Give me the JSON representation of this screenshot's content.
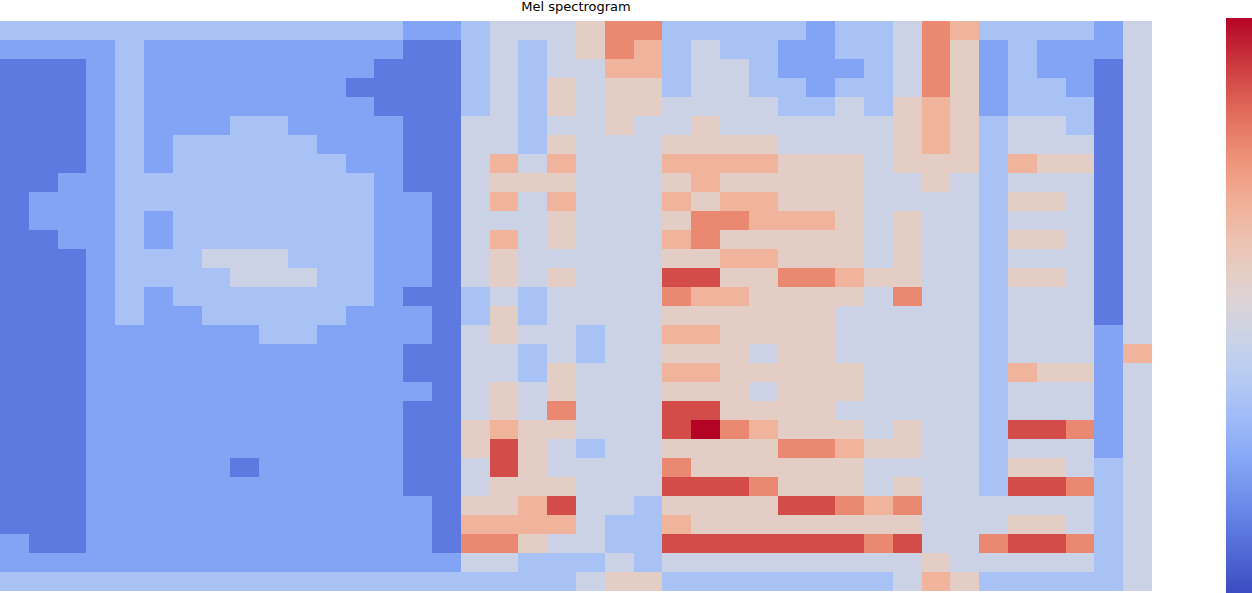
{
  "chart_data": {
    "type": "heatmap",
    "title": "Mel spectrogram",
    "color": "coolwarm",
    "tick_labels": false,
    "colorbar": {
      "range": [
        0,
        9
      ]
    },
    "values": [
      [
        3,
        2,
        1,
        1,
        1,
        1,
        1,
        1,
        1,
        1,
        1,
        1,
        1,
        1,
        1,
        1,
        1,
        1,
        1,
        1,
        1,
        1,
        1,
        1,
        1,
        1,
        1,
        2,
        2,
        3
      ],
      [
        3,
        2,
        1,
        1,
        1,
        1,
        1,
        1,
        1,
        2,
        2,
        1,
        1,
        1,
        1,
        1,
        1,
        1,
        1,
        1,
        1,
        1,
        1,
        1,
        1,
        1,
        1,
        1,
        2,
        3
      ],
      [
        3,
        2,
        1,
        1,
        1,
        1,
        1,
        1,
        2,
        2,
        2,
        2,
        1,
        1,
        1,
        1,
        1,
        1,
        1,
        1,
        1,
        1,
        1,
        1,
        1,
        1,
        1,
        1,
        2,
        3
      ],
      [
        3,
        2,
        2,
        2,
        2,
        2,
        2,
        2,
        2,
        2,
        2,
        2,
        2,
        2,
        2,
        2,
        2,
        2,
        2,
        2,
        2,
        2,
        2,
        2,
        2,
        2,
        2,
        2,
        2,
        3
      ],
      [
        3,
        3,
        3,
        3,
        3,
        3,
        3,
        3,
        3,
        3,
        3,
        3,
        3,
        3,
        3,
        3,
        2,
        2,
        2,
        2,
        2,
        2,
        2,
        2,
        2,
        2,
        2,
        2,
        2,
        3
      ],
      [
        3,
        2,
        2,
        2,
        2,
        2,
        2,
        2,
        3,
        3,
        2,
        2,
        3,
        3,
        2,
        2,
        2,
        2,
        2,
        2,
        2,
        2,
        2,
        2,
        2,
        2,
        2,
        2,
        2,
        3
      ],
      [
        3,
        2,
        2,
        2,
        2,
        2,
        3,
        3,
        3,
        3,
        3,
        3,
        3,
        3,
        3,
        2,
        2,
        2,
        2,
        2,
        2,
        2,
        2,
        2,
        2,
        2,
        2,
        2,
        2,
        3
      ],
      [
        3,
        2,
        2,
        2,
        2,
        2,
        3,
        3,
        3,
        3,
        3,
        3,
        4,
        3,
        3,
        3,
        2,
        2,
        2,
        2,
        2,
        2,
        2,
        2,
        2,
        2,
        2,
        2,
        2,
        3
      ],
      [
        3,
        2,
        2,
        2,
        2,
        3,
        3,
        3,
        3,
        3,
        3,
        3,
        4,
        4,
        3,
        3,
        2,
        2,
        2,
        2,
        2,
        2,
        2,
        1,
        2,
        2,
        2,
        2,
        2,
        3
      ],
      [
        3,
        2,
        2,
        2,
        2,
        3,
        3,
        3,
        3,
        3,
        3,
        3,
        4,
        4,
        3,
        3,
        3,
        2,
        2,
        2,
        2,
        2,
        2,
        2,
        2,
        2,
        2,
        2,
        2,
        3
      ],
      [
        3,
        2,
        2,
        2,
        2,
        2,
        3,
        3,
        3,
        3,
        3,
        3,
        3,
        4,
        3,
        3,
        3,
        2,
        2,
        2,
        2,
        2,
        2,
        2,
        2,
        2,
        2,
        2,
        2,
        3
      ],
      [
        3,
        2,
        2,
        2,
        2,
        2,
        2,
        3,
        3,
        3,
        3,
        3,
        3,
        3,
        3,
        3,
        2,
        2,
        2,
        2,
        2,
        2,
        2,
        2,
        2,
        2,
        2,
        2,
        2,
        3
      ],
      [
        3,
        2,
        2,
        1,
        2,
        2,
        2,
        2,
        3,
        3,
        3,
        3,
        3,
        3,
        3,
        2,
        2,
        2,
        2,
        2,
        2,
        2,
        2,
        2,
        2,
        2,
        2,
        2,
        2,
        3
      ],
      [
        3,
        2,
        1,
        1,
        1,
        2,
        2,
        2,
        2,
        2,
        2,
        2,
        2,
        2,
        2,
        2,
        2,
        2,
        2,
        2,
        2,
        2,
        2,
        2,
        2,
        2,
        2,
        2,
        2,
        3
      ],
      [
        2,
        1,
        1,
        1,
        1,
        1,
        1,
        1,
        1,
        2,
        2,
        2,
        2,
        2,
        1,
        2,
        2,
        1,
        1,
        2,
        1,
        1,
        1,
        1,
        1,
        2,
        2,
        2,
        2,
        3
      ],
      [
        2,
        1,
        1,
        1,
        1,
        1,
        1,
        1,
        1,
        1,
        1,
        1,
        1,
        1,
        1,
        1,
        1,
        1,
        1,
        1,
        1,
        1,
        1,
        1,
        1,
        1,
        1,
        1,
        2,
        3
      ],
      [
        3,
        3,
        3,
        3,
        3,
        4,
        4,
        4,
        4,
        4,
        4,
        4,
        4,
        4,
        3,
        3,
        4,
        4,
        4,
        4,
        4,
        5,
        5,
        4,
        4,
        5,
        6,
        7,
        4,
        3
      ],
      [
        4,
        4,
        4,
        4,
        4,
        4,
        4,
        6,
        5,
        6,
        4,
        6,
        5,
        5,
        4,
        5,
        5,
        4,
        4,
        5,
        5,
        6,
        8,
        8,
        5,
        5,
        6,
        7,
        4,
        3
      ],
      [
        4,
        3,
        3,
        3,
        3,
        3,
        3,
        4,
        5,
        4,
        4,
        4,
        4,
        4,
        3,
        3,
        4,
        3,
        3,
        4,
        4,
        5,
        5,
        5,
        5,
        6,
        6,
        5,
        3,
        3
      ],
      [
        4,
        4,
        4,
        5,
        5,
        4,
        5,
        6,
        5,
        6,
        5,
        5,
        4,
        5,
        4,
        4,
        4,
        4,
        5,
        5,
        7,
        5,
        4,
        4,
        5,
        8,
        6,
        4,
        3,
        3
      ],
      [
        5,
        5,
        4,
        4,
        4,
        4,
        4,
        4,
        4,
        4,
        4,
        4,
        4,
        4,
        4,
        4,
        3,
        3,
        4,
        4,
        4,
        4,
        3,
        4,
        4,
        4,
        4,
        4,
        3,
        4
      ],
      [
        7,
        7,
        6,
        5,
        5,
        5,
        4,
        4,
        4,
        4,
        4,
        4,
        4,
        4,
        4,
        4,
        4,
        4,
        4,
        4,
        4,
        4,
        4,
        4,
        4,
        4,
        3,
        3,
        4,
        5
      ],
      [
        7,
        6,
        6,
        5,
        5,
        4,
        4,
        4,
        4,
        4,
        4,
        4,
        4,
        4,
        4,
        4,
        4,
        4,
        4,
        4,
        4,
        4,
        4,
        4,
        4,
        3,
        3,
        3,
        3,
        5
      ],
      [
        3,
        3,
        3,
        3,
        4,
        4,
        5,
        6,
        5,
        6,
        5,
        6,
        5,
        8,
        7,
        5,
        6,
        5,
        6,
        5,
        8,
        8,
        5,
        7,
        8,
        5,
        6,
        8,
        4,
        3
      ],
      [
        3,
        4,
        4,
        4,
        4,
        5,
        5,
        6,
        6,
        5,
        7,
        7,
        5,
        8,
        6,
        5,
        6,
        5,
        6,
        5,
        8,
        9,
        5,
        5,
        8,
        5,
        5,
        8,
        4,
        3
      ],
      [
        3,
        3,
        4,
        4,
        4,
        4,
        5,
        6,
        5,
        6,
        7,
        5,
        6,
        5,
        6,
        5,
        5,
        5,
        5,
        5,
        5,
        7,
        5,
        5,
        8,
        5,
        5,
        8,
        4,
        3
      ],
      [
        3,
        3,
        3,
        3,
        4,
        4,
        5,
        6,
        5,
        6,
        6,
        5,
        6,
        5,
        5,
        5,
        5,
        4,
        5,
        4,
        5,
        6,
        5,
        5,
        7,
        5,
        5,
        8,
        4,
        3
      ],
      [
        3,
        2,
        2,
        3,
        3,
        4,
        4,
        5,
        5,
        5,
        6,
        5,
        5,
        7,
        5,
        5,
        5,
        5,
        5,
        5,
        5,
        5,
        7,
        5,
        5,
        8,
        5,
        8,
        4,
        3
      ],
      [
        2,
        2,
        2,
        2,
        3,
        4,
        4,
        5,
        5,
        5,
        6,
        5,
        5,
        7,
        5,
        5,
        5,
        5,
        5,
        5,
        5,
        5,
        7,
        5,
        5,
        8,
        5,
        8,
        4,
        3
      ],
      [
        3,
        3,
        2,
        3,
        4,
        4,
        4,
        5,
        5,
        5,
        5,
        5,
        5,
        6,
        5,
        4,
        4,
        4,
        5,
        5,
        4,
        5,
        6,
        5,
        5,
        7,
        5,
        8,
        4,
        3
      ],
      [
        3,
        3,
        3,
        3,
        3,
        4,
        4,
        4,
        4,
        4,
        4,
        4,
        4,
        5,
        4,
        4,
        4,
        4,
        4,
        4,
        4,
        4,
        5,
        4,
        4,
        6,
        5,
        7,
        4,
        3
      ],
      [
        4,
        4,
        4,
        4,
        5,
        5,
        5,
        5,
        4,
        4,
        5,
        5,
        5,
        5,
        7,
        4,
        4,
        4,
        4,
        4,
        4,
        5,
        5,
        4,
        5,
        7,
        5,
        8,
        4,
        4
      ],
      [
        7,
        7,
        7,
        7,
        6,
        6,
        6,
        5,
        5,
        4,
        4,
        4,
        4,
        4,
        4,
        4,
        4,
        4,
        4,
        4,
        4,
        4,
        4,
        4,
        4,
        4,
        4,
        4,
        5,
        6
      ],
      [
        6,
        5,
        5,
        5,
        5,
        5,
        5,
        5,
        4,
        4,
        4,
        4,
        4,
        4,
        4,
        4,
        4,
        4,
        4,
        4,
        4,
        4,
        4,
        4,
        4,
        4,
        4,
        4,
        4,
        5
      ],
      [
        3,
        2,
        2,
        2,
        2,
        3,
        3,
        3,
        3,
        3,
        3,
        3,
        3,
        3,
        3,
        3,
        3,
        3,
        3,
        3,
        3,
        3,
        3,
        3,
        3,
        4,
        4,
        7,
        4,
        3
      ],
      [
        3,
        3,
        3,
        3,
        3,
        4,
        4,
        6,
        4,
        5,
        4,
        5,
        4,
        5,
        4,
        4,
        4,
        4,
        6,
        4,
        4,
        8,
        4,
        5,
        8,
        4,
        5,
        8,
        4,
        3
      ],
      [
        3,
        2,
        2,
        3,
        3,
        4,
        4,
        5,
        4,
        5,
        4,
        5,
        4,
        5,
        4,
        4,
        4,
        4,
        5,
        4,
        4,
        8,
        4,
        5,
        8,
        4,
        5,
        8,
        4,
        3
      ],
      [
        3,
        2,
        2,
        2,
        3,
        3,
        4,
        5,
        4,
        4,
        4,
        4,
        4,
        4,
        4,
        4,
        4,
        4,
        5,
        4,
        4,
        7,
        4,
        4,
        7,
        4,
        4,
        7,
        4,
        3
      ],
      [
        2,
        2,
        1,
        1,
        1,
        1,
        1,
        1,
        1,
        1,
        1,
        1,
        1,
        1,
        1,
        1,
        2,
        2,
        2,
        2,
        2,
        2,
        2,
        3,
        3,
        3,
        3,
        3,
        3,
        3
      ],
      [
        4,
        4,
        4,
        4,
        4,
        4,
        4,
        4,
        4,
        4,
        4,
        4,
        4,
        4,
        4,
        4,
        4,
        6,
        4,
        4,
        4,
        4,
        4,
        4,
        4,
        4,
        4,
        4,
        4,
        4
      ]
    ]
  }
}
